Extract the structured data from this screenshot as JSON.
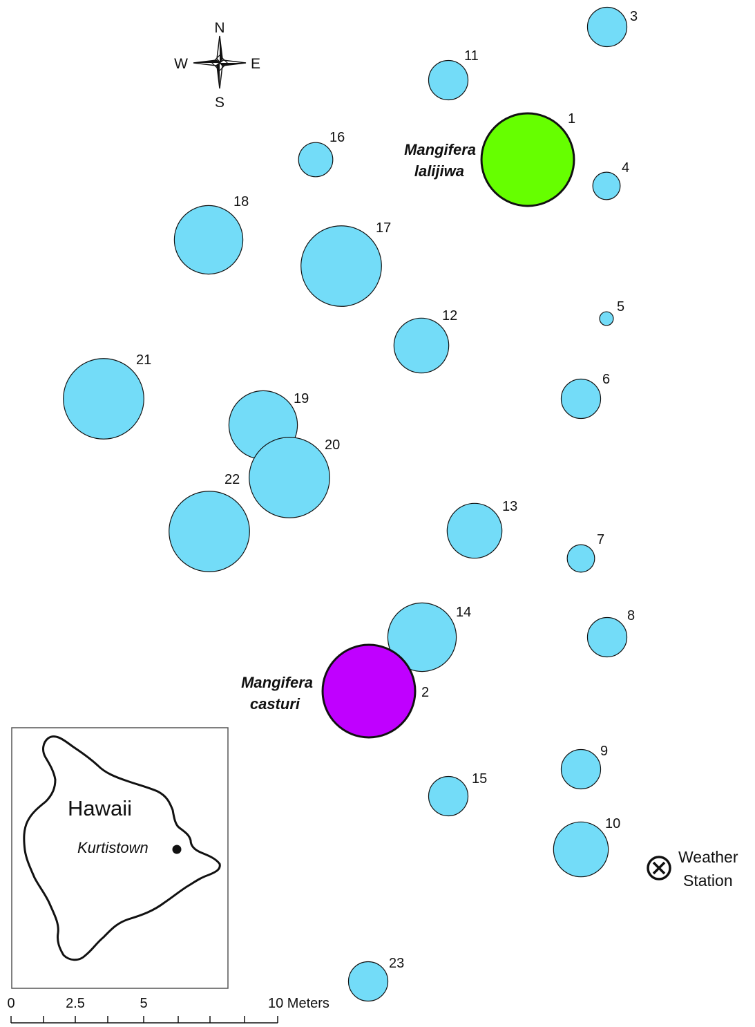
{
  "colors": {
    "tree_fill": "#73dcf8",
    "lalijiwa_fill": "#66ff00",
    "casturi_fill": "#c000ff",
    "outline": "#111111"
  },
  "compass": {
    "n": "N",
    "e": "E",
    "s": "S",
    "w": "W"
  },
  "trees": [
    {
      "id": "1",
      "species": "lalijiwa",
      "size": 5.4
    },
    {
      "id": "2",
      "species": "casturi",
      "size": 5.4
    },
    {
      "id": "3",
      "size": 2.3
    },
    {
      "id": "4",
      "size": 1.6
    },
    {
      "id": "5",
      "size": 0.8
    },
    {
      "id": "6",
      "size": 2.3
    },
    {
      "id": "7",
      "size": 1.6
    },
    {
      "id": "8",
      "size": 2.3
    },
    {
      "id": "9",
      "size": 2.3
    },
    {
      "id": "10",
      "size": 3.2
    },
    {
      "id": "11",
      "size": 2.3
    },
    {
      "id": "12",
      "size": 3.2
    },
    {
      "id": "13",
      "size": 3.2
    },
    {
      "id": "14",
      "size": 4.0
    },
    {
      "id": "15",
      "size": 2.3
    },
    {
      "id": "16",
      "size": 2.0
    },
    {
      "id": "17",
      "size": 4.7
    },
    {
      "id": "18",
      "size": 4.0
    },
    {
      "id": "19",
      "size": 4.0
    },
    {
      "id": "20",
      "size": 4.7
    },
    {
      "id": "21",
      "size": 4.7
    },
    {
      "id": "22",
      "size": 4.7
    },
    {
      "id": "23",
      "size": 2.3
    }
  ],
  "species_labels": {
    "lalijiwa": [
      "Mangifera",
      "lalijiwa"
    ],
    "casturi": [
      "Mangifera",
      "casturi"
    ]
  },
  "inset": {
    "title": "Hawaii",
    "town": "Kurtistown"
  },
  "weather_station": {
    "line1": "Weather",
    "line2": "Station",
    "icon": "circled-x-icon"
  },
  "scale_bar": {
    "ticks": [
      "0",
      "2.5",
      "5",
      "10 Meters"
    ]
  }
}
